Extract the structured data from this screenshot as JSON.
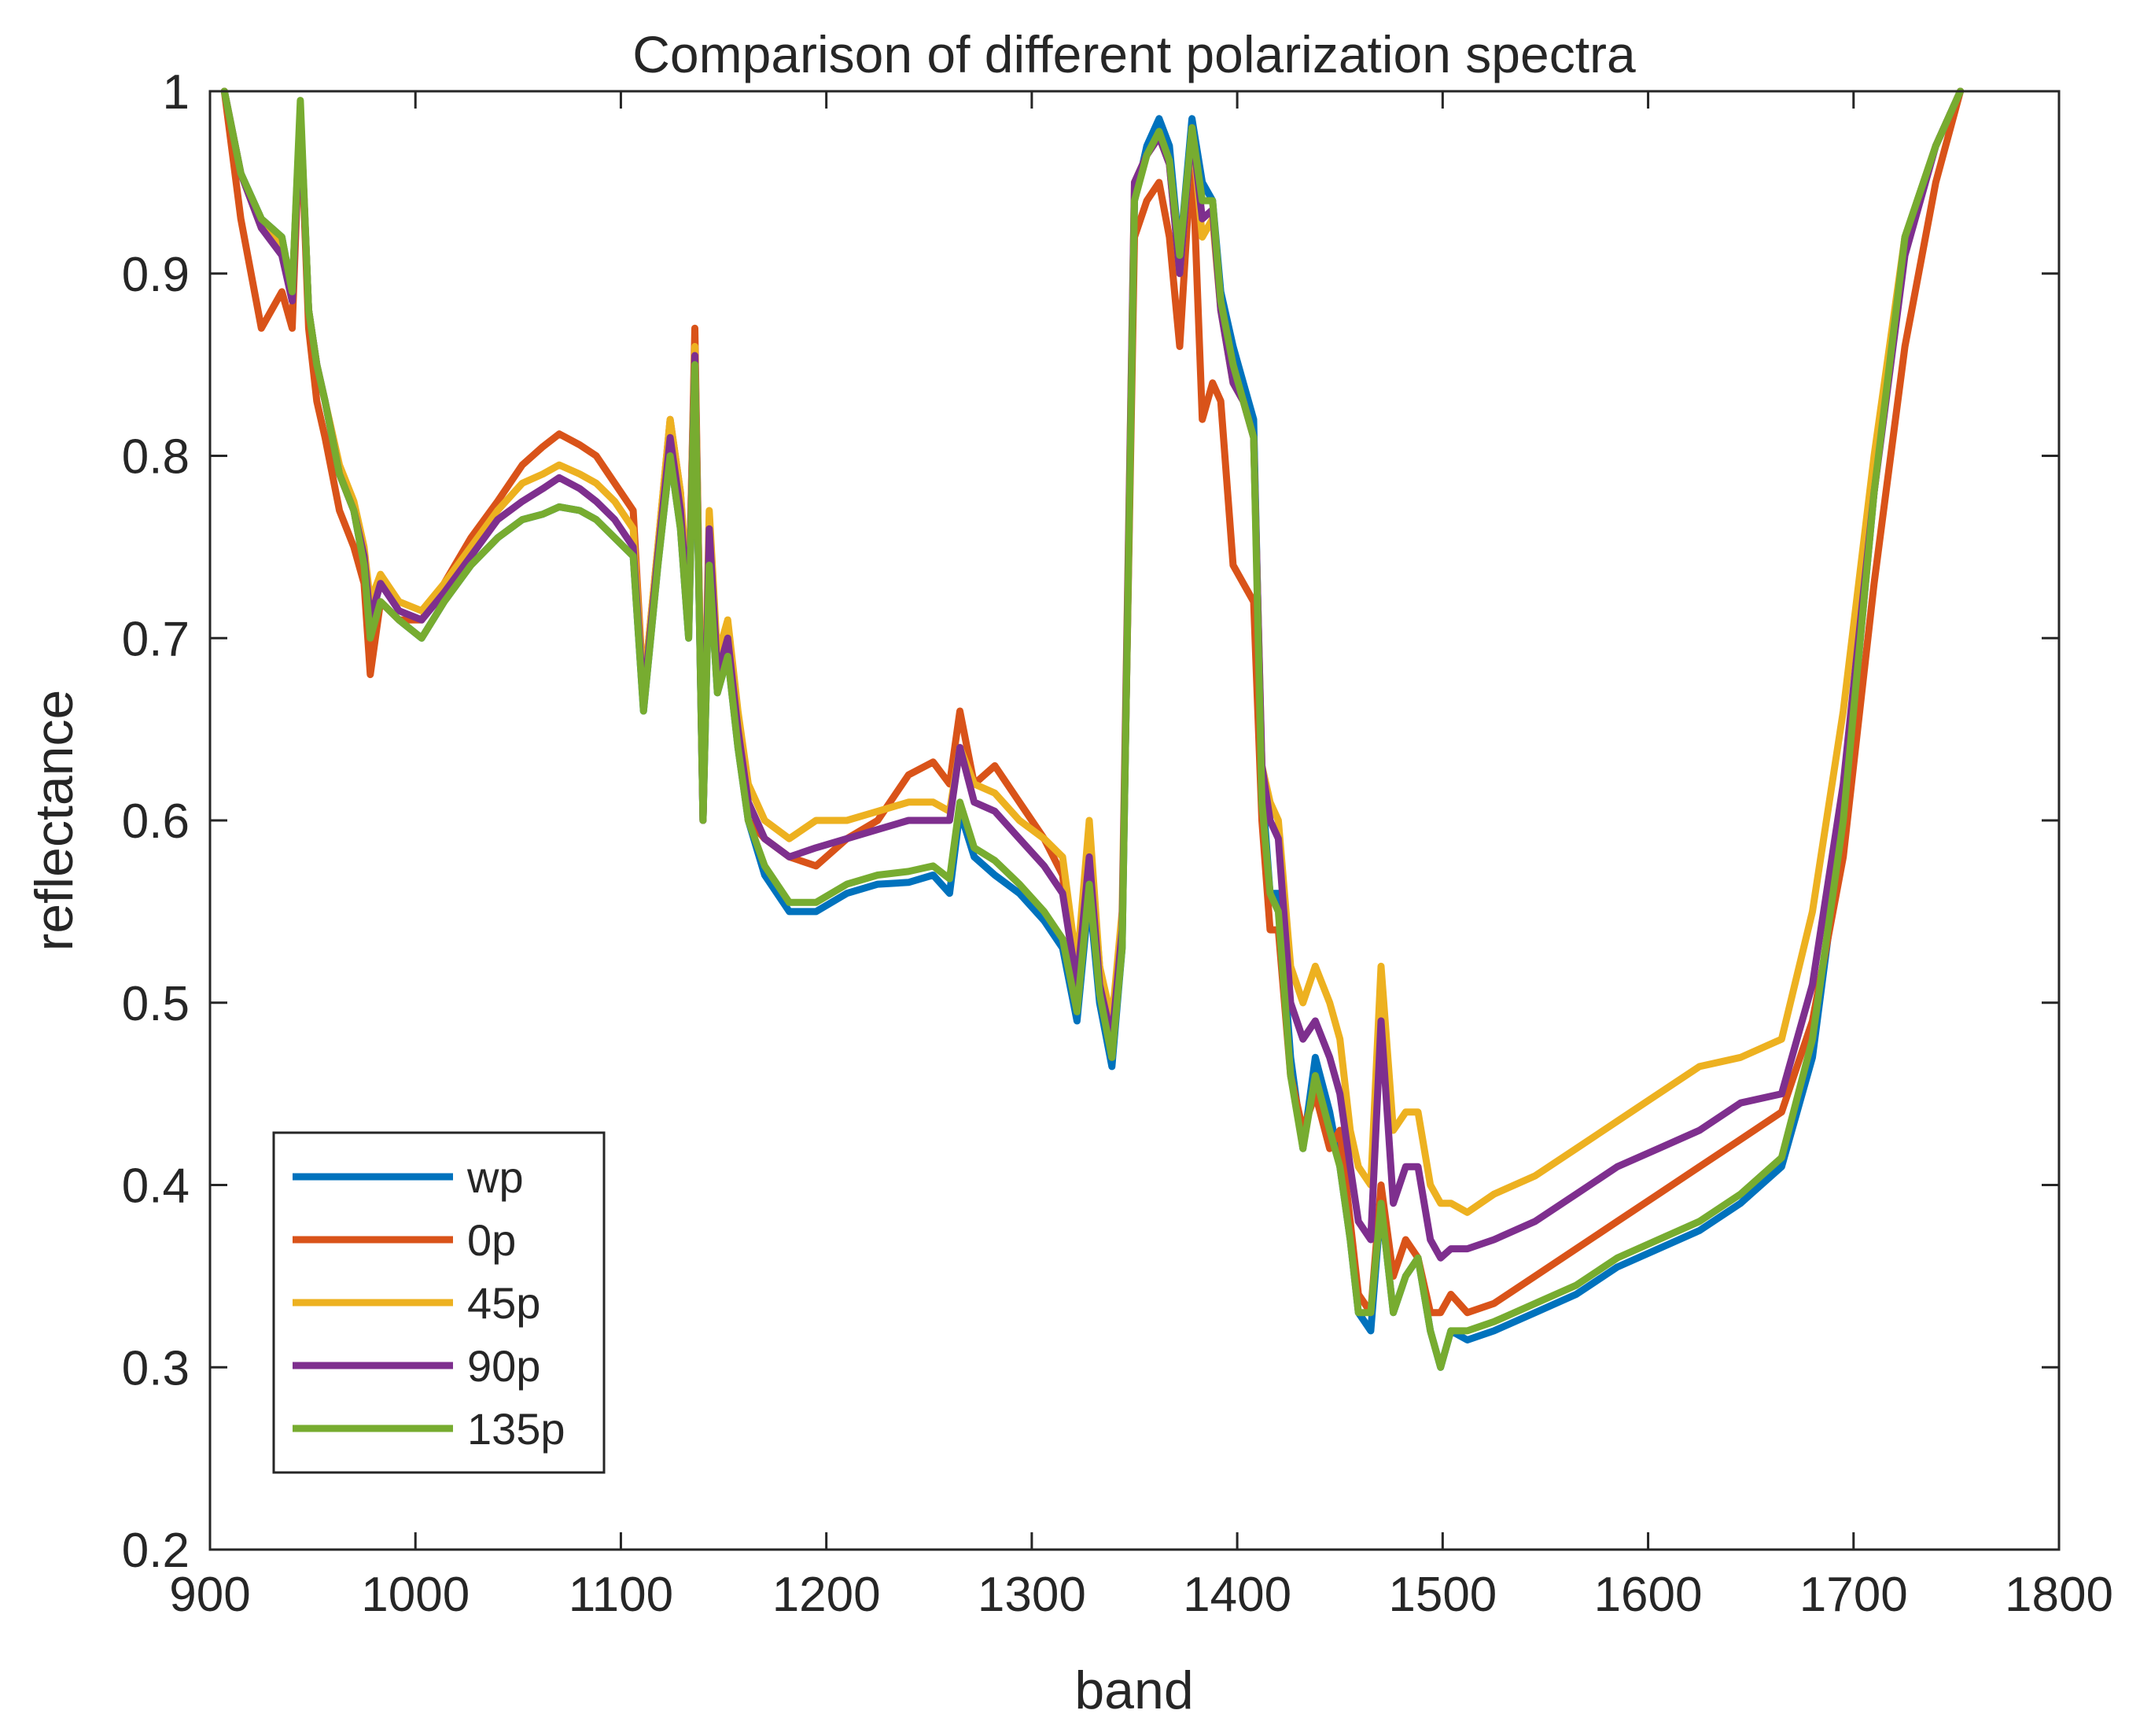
{
  "chart_data": {
    "type": "line",
    "title": "Comparison of different polarization spectra",
    "xlabel": "band",
    "ylabel": "reflectance",
    "xlim": [
      900,
      1800
    ],
    "ylim": [
      0.2,
      1
    ],
    "xticks": [
      900,
      1000,
      1100,
      1200,
      1300,
      1400,
      1500,
      1600,
      1700,
      1800
    ],
    "yticks": [
      0.2,
      0.3,
      0.4,
      0.5,
      0.6,
      0.7,
      0.8,
      0.9,
      1
    ],
    "ytick_labels": [
      "0.2",
      "0.3",
      "0.4",
      "0.5",
      "0.6",
      "0.7",
      "0.8",
      "0.9",
      "1"
    ],
    "grid": false,
    "legend_position": "bottom-left",
    "x": [
      907,
      915,
      925,
      935,
      940,
      944,
      948,
      952,
      956,
      963,
      970,
      975,
      978,
      983,
      992,
      1003,
      1014,
      1027,
      1040,
      1052,
      1062,
      1070,
      1080,
      1088,
      1097,
      1106,
      1111,
      1118,
      1124,
      1129,
      1133,
      1136,
      1140,
      1143,
      1147,
      1152,
      1157,
      1162,
      1170,
      1182,
      1195,
      1210,
      1225,
      1240,
      1252,
      1260,
      1265,
      1272,
      1282,
      1294,
      1306,
      1315,
      1322,
      1328,
      1333,
      1339,
      1344,
      1350,
      1356,
      1362,
      1367,
      1372,
      1378,
      1383,
      1388,
      1392,
      1398,
      1403,
      1408,
      1412,
      1416,
      1420,
      1426,
      1432,
      1438,
      1445,
      1450,
      1455,
      1459,
      1465,
      1470,
      1476,
      1482,
      1488,
      1494,
      1499,
      1504,
      1512,
      1525,
      1545,
      1565,
      1585,
      1605,
      1625,
      1645,
      1665,
      1680,
      1695,
      1710,
      1725,
      1740,
      1752
    ],
    "series": [
      {
        "name": "wp",
        "color": "#0072BD",
        "values": [
          1.0,
          0.955,
          0.93,
          0.92,
          0.89,
          0.99,
          0.88,
          0.85,
          0.83,
          0.79,
          0.77,
          0.74,
          0.7,
          0.72,
          0.71,
          0.7,
          0.72,
          0.74,
          0.755,
          0.765,
          0.768,
          0.772,
          0.77,
          0.765,
          0.755,
          0.745,
          0.66,
          0.74,
          0.8,
          0.76,
          0.7,
          0.85,
          0.6,
          0.74,
          0.67,
          0.69,
          0.64,
          0.6,
          0.57,
          0.55,
          0.55,
          0.56,
          0.565,
          0.566,
          0.57,
          0.56,
          0.605,
          0.58,
          0.57,
          0.56,
          0.545,
          0.53,
          0.49,
          0.56,
          0.5,
          0.465,
          0.53,
          0.94,
          0.97,
          0.985,
          0.97,
          0.91,
          0.985,
          0.95,
          0.94,
          0.89,
          0.86,
          0.84,
          0.82,
          0.62,
          0.56,
          0.56,
          0.47,
          0.42,
          0.47,
          0.44,
          0.41,
          0.37,
          0.33,
          0.32,
          0.39,
          0.33,
          0.35,
          0.36,
          0.32,
          0.3,
          0.32,
          0.315,
          0.32,
          0.33,
          0.34,
          0.355,
          0.365,
          0.375,
          0.39,
          0.41,
          0.47,
          0.6,
          0.78,
          0.92,
          0.97,
          1.0
        ]
      },
      {
        "name": "0p",
        "color": "#D95319",
        "values": [
          1.0,
          0.93,
          0.87,
          0.89,
          0.87,
          0.99,
          0.87,
          0.83,
          0.81,
          0.77,
          0.75,
          0.73,
          0.68,
          0.72,
          0.71,
          0.71,
          0.73,
          0.755,
          0.775,
          0.795,
          0.805,
          0.812,
          0.806,
          0.8,
          0.785,
          0.77,
          0.67,
          0.75,
          0.82,
          0.78,
          0.71,
          0.87,
          0.6,
          0.76,
          0.68,
          0.7,
          0.65,
          0.6,
          0.59,
          0.58,
          0.575,
          0.59,
          0.6,
          0.625,
          0.632,
          0.62,
          0.66,
          0.62,
          0.63,
          0.61,
          0.59,
          0.57,
          0.5,
          0.59,
          0.52,
          0.47,
          0.54,
          0.92,
          0.94,
          0.95,
          0.92,
          0.86,
          0.97,
          0.82,
          0.84,
          0.83,
          0.74,
          0.73,
          0.72,
          0.6,
          0.54,
          0.54,
          0.46,
          0.43,
          0.45,
          0.42,
          0.43,
          0.38,
          0.34,
          0.33,
          0.4,
          0.35,
          0.37,
          0.36,
          0.33,
          0.33,
          0.34,
          0.33,
          0.335,
          0.35,
          0.365,
          0.38,
          0.395,
          0.41,
          0.425,
          0.44,
          0.49,
          0.58,
          0.73,
          0.86,
          0.95,
          1.0
        ]
      },
      {
        "name": "45p",
        "color": "#EDB120",
        "values": [
          1.0,
          0.955,
          0.925,
          0.915,
          0.89,
          0.99,
          0.88,
          0.85,
          0.83,
          0.795,
          0.775,
          0.75,
          0.72,
          0.735,
          0.72,
          0.715,
          0.73,
          0.75,
          0.77,
          0.785,
          0.79,
          0.795,
          0.79,
          0.785,
          0.775,
          0.76,
          0.67,
          0.75,
          0.82,
          0.78,
          0.72,
          0.86,
          0.61,
          0.77,
          0.69,
          0.71,
          0.66,
          0.62,
          0.6,
          0.59,
          0.6,
          0.6,
          0.605,
          0.61,
          0.61,
          0.605,
          0.64,
          0.62,
          0.615,
          0.6,
          0.59,
          0.58,
          0.52,
          0.6,
          0.52,
          0.49,
          0.55,
          0.95,
          0.965,
          0.975,
          0.96,
          0.9,
          0.98,
          0.92,
          0.93,
          0.88,
          0.84,
          0.83,
          0.81,
          0.63,
          0.61,
          0.6,
          0.52,
          0.5,
          0.52,
          0.5,
          0.48,
          0.43,
          0.41,
          0.4,
          0.52,
          0.43,
          0.44,
          0.44,
          0.4,
          0.39,
          0.39,
          0.385,
          0.395,
          0.405,
          0.42,
          0.435,
          0.45,
          0.465,
          0.47,
          0.48,
          0.55,
          0.66,
          0.8,
          0.92,
          0.97,
          1.0
        ]
      },
      {
        "name": "90p",
        "color": "#7E2F8E",
        "values": [
          1.0,
          0.955,
          0.925,
          0.91,
          0.885,
          0.99,
          0.88,
          0.85,
          0.83,
          0.79,
          0.77,
          0.745,
          0.71,
          0.73,
          0.715,
          0.71,
          0.725,
          0.745,
          0.765,
          0.775,
          0.782,
          0.788,
          0.782,
          0.775,
          0.765,
          0.75,
          0.665,
          0.745,
          0.81,
          0.77,
          0.71,
          0.855,
          0.6,
          0.76,
          0.68,
          0.7,
          0.65,
          0.61,
          0.59,
          0.58,
          0.585,
          0.59,
          0.595,
          0.6,
          0.6,
          0.6,
          0.64,
          0.61,
          0.605,
          0.59,
          0.575,
          0.56,
          0.51,
          0.58,
          0.51,
          0.48,
          0.54,
          0.95,
          0.965,
          0.975,
          0.96,
          0.9,
          0.98,
          0.93,
          0.935,
          0.88,
          0.84,
          0.83,
          0.81,
          0.63,
          0.6,
          0.59,
          0.5,
          0.48,
          0.49,
          0.47,
          0.45,
          0.41,
          0.38,
          0.37,
          0.49,
          0.39,
          0.41,
          0.41,
          0.37,
          0.36,
          0.365,
          0.365,
          0.37,
          0.38,
          0.395,
          0.41,
          0.42,
          0.43,
          0.445,
          0.45,
          0.51,
          0.62,
          0.78,
          0.91,
          0.97,
          1.0
        ]
      },
      {
        "name": "135p",
        "color": "#77AC30",
        "values": [
          1.0,
          0.955,
          0.93,
          0.92,
          0.89,
          0.995,
          0.88,
          0.85,
          0.83,
          0.79,
          0.77,
          0.74,
          0.7,
          0.72,
          0.71,
          0.7,
          0.72,
          0.74,
          0.755,
          0.765,
          0.768,
          0.772,
          0.77,
          0.765,
          0.755,
          0.745,
          0.66,
          0.74,
          0.8,
          0.76,
          0.7,
          0.85,
          0.6,
          0.74,
          0.67,
          0.69,
          0.64,
          0.6,
          0.575,
          0.555,
          0.555,
          0.565,
          0.57,
          0.572,
          0.575,
          0.568,
          0.61,
          0.585,
          0.578,
          0.565,
          0.55,
          0.535,
          0.495,
          0.565,
          0.505,
          0.47,
          0.53,
          0.94,
          0.965,
          0.978,
          0.962,
          0.91,
          0.98,
          0.94,
          0.94,
          0.885,
          0.85,
          0.83,
          0.81,
          0.61,
          0.56,
          0.55,
          0.46,
          0.42,
          0.46,
          0.43,
          0.41,
          0.37,
          0.33,
          0.33,
          0.39,
          0.33,
          0.35,
          0.36,
          0.32,
          0.3,
          0.32,
          0.32,
          0.325,
          0.335,
          0.345,
          0.36,
          0.37,
          0.38,
          0.395,
          0.415,
          0.48,
          0.6,
          0.78,
          0.92,
          0.97,
          1.0
        ]
      }
    ]
  }
}
